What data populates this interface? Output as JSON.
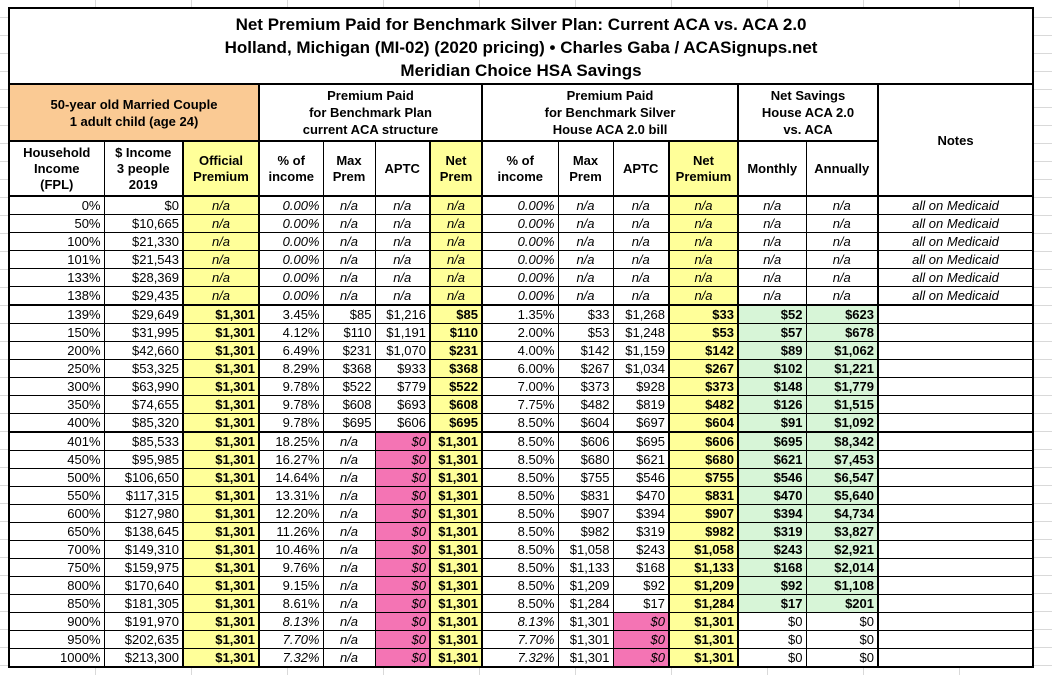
{
  "page": {
    "title_line1": "Net Premium Paid for Benchmark Silver Plan: Current ACA vs. ACA 2.0",
    "title_line2": "Holland, Michigan (MI-02) (2020 pricing) • Charles Gaba / ACASignups.net",
    "title_line3": "Meridian Choice HSA Savings"
  },
  "colors": {
    "yellow": "#FFFF99",
    "orange": "#FACA94",
    "pink": "#F474B4",
    "green": "#D7F5D7"
  },
  "chart_data": {
    "type": "table",
    "title": "Net Premium Paid for Benchmark Silver Plan: Current ACA vs. ACA 2.0",
    "subtitle": "Holland, Michigan (MI-02) (2020 pricing) • Charles Gaba / ACASignups.net",
    "subtitle2": "Meridian Choice HSA Savings",
    "column_groups": [
      {
        "label": "50-year old Married Couple\n1 adult child (age 24)",
        "span": 3
      },
      {
        "label": "Premium Paid\nfor Benchmark Plan\ncurrent ACA structure",
        "span": 4
      },
      {
        "label": "Premium Paid\nfor Benchmark Silver\nHouse ACA 2.0 bill",
        "span": 4
      },
      {
        "label": "Net Savings\nHouse ACA 2.0\nvs. ACA",
        "span": 2
      },
      {
        "label": "Notes",
        "span": 1
      }
    ],
    "columns": [
      "Household\nIncome\n(FPL)",
      "$ Income\n3 people\n2019",
      "Official\nPremium",
      "% of\nincome",
      "Max\nPrem",
      "APTC",
      "Net\nPrem",
      "% of\nincome",
      "Max\nPrem",
      "APTC",
      "Net\nPremium",
      "Monthly",
      "Annually"
    ],
    "rows": [
      {
        "type": "medicaid",
        "cells": [
          "0%",
          "$0",
          "n/a",
          "0.00%",
          "n/a",
          "n/a",
          "n/a",
          "0.00%",
          "n/a",
          "n/a",
          "n/a",
          "n/a",
          "n/a",
          "all on Medicaid"
        ]
      },
      {
        "type": "medicaid",
        "cells": [
          "50%",
          "$10,665",
          "n/a",
          "0.00%",
          "n/a",
          "n/a",
          "n/a",
          "0.00%",
          "n/a",
          "n/a",
          "n/a",
          "n/a",
          "n/a",
          "all on Medicaid"
        ]
      },
      {
        "type": "medicaid",
        "cells": [
          "100%",
          "$21,330",
          "n/a",
          "0.00%",
          "n/a",
          "n/a",
          "n/a",
          "0.00%",
          "n/a",
          "n/a",
          "n/a",
          "n/a",
          "n/a",
          "all on Medicaid"
        ]
      },
      {
        "type": "medicaid",
        "cells": [
          "101%",
          "$21,543",
          "n/a",
          "0.00%",
          "n/a",
          "n/a",
          "n/a",
          "0.00%",
          "n/a",
          "n/a",
          "n/a",
          "n/a",
          "n/a",
          "all on Medicaid"
        ]
      },
      {
        "type": "medicaid",
        "cells": [
          "133%",
          "$28,369",
          "n/a",
          "0.00%",
          "n/a",
          "n/a",
          "n/a",
          "0.00%",
          "n/a",
          "n/a",
          "n/a",
          "n/a",
          "n/a",
          "all on Medicaid"
        ]
      },
      {
        "type": "medicaid",
        "cells": [
          "138%",
          "$29,435",
          "n/a",
          "0.00%",
          "n/a",
          "n/a",
          "n/a",
          "0.00%",
          "n/a",
          "n/a",
          "n/a",
          "n/a",
          "n/a",
          "all on Medicaid"
        ]
      },
      {
        "type": "std",
        "cells": [
          "139%",
          "$29,649",
          "$1,301",
          "3.45%",
          "$85",
          "$1,216",
          "$85",
          "1.35%",
          "$33",
          "$1,268",
          "$33",
          "$52",
          "$623",
          ""
        ]
      },
      {
        "type": "std",
        "cells": [
          "150%",
          "$31,995",
          "$1,301",
          "4.12%",
          "$110",
          "$1,191",
          "$110",
          "2.00%",
          "$53",
          "$1,248",
          "$53",
          "$57",
          "$678",
          ""
        ]
      },
      {
        "type": "std",
        "cells": [
          "200%",
          "$42,660",
          "$1,301",
          "6.49%",
          "$231",
          "$1,070",
          "$231",
          "4.00%",
          "$142",
          "$1,159",
          "$142",
          "$89",
          "$1,062",
          ""
        ]
      },
      {
        "type": "std",
        "cells": [
          "250%",
          "$53,325",
          "$1,301",
          "8.29%",
          "$368",
          "$933",
          "$368",
          "6.00%",
          "$267",
          "$1,034",
          "$267",
          "$102",
          "$1,221",
          ""
        ]
      },
      {
        "type": "std",
        "cells": [
          "300%",
          "$63,990",
          "$1,301",
          "9.78%",
          "$522",
          "$779",
          "$522",
          "7.00%",
          "$373",
          "$928",
          "$373",
          "$148",
          "$1,779",
          ""
        ]
      },
      {
        "type": "std",
        "cells": [
          "350%",
          "$74,655",
          "$1,301",
          "9.78%",
          "$608",
          "$693",
          "$608",
          "7.75%",
          "$482",
          "$819",
          "$482",
          "$126",
          "$1,515",
          ""
        ]
      },
      {
        "type": "std",
        "cells": [
          "400%",
          "$85,320",
          "$1,301",
          "9.78%",
          "$695",
          "$606",
          "$695",
          "8.50%",
          "$604",
          "$697",
          "$604",
          "$91",
          "$1,092",
          ""
        ]
      },
      {
        "type": "cliff",
        "cells": [
          "401%",
          "$85,533",
          "$1,301",
          "18.25%",
          "n/a",
          "$0",
          "$1,301",
          "8.50%",
          "$606",
          "$695",
          "$606",
          "$695",
          "$8,342",
          ""
        ]
      },
      {
        "type": "cliff",
        "cells": [
          "450%",
          "$95,985",
          "$1,301",
          "16.27%",
          "n/a",
          "$0",
          "$1,301",
          "8.50%",
          "$680",
          "$621",
          "$680",
          "$621",
          "$7,453",
          ""
        ]
      },
      {
        "type": "cliff",
        "cells": [
          "500%",
          "$106,650",
          "$1,301",
          "14.64%",
          "n/a",
          "$0",
          "$1,301",
          "8.50%",
          "$755",
          "$546",
          "$755",
          "$546",
          "$6,547",
          ""
        ]
      },
      {
        "type": "cliff",
        "cells": [
          "550%",
          "$117,315",
          "$1,301",
          "13.31%",
          "n/a",
          "$0",
          "$1,301",
          "8.50%",
          "$831",
          "$470",
          "$831",
          "$470",
          "$5,640",
          ""
        ]
      },
      {
        "type": "cliff",
        "cells": [
          "600%",
          "$127,980",
          "$1,301",
          "12.20%",
          "n/a",
          "$0",
          "$1,301",
          "8.50%",
          "$907",
          "$394",
          "$907",
          "$394",
          "$4,734",
          ""
        ]
      },
      {
        "type": "cliff",
        "cells": [
          "650%",
          "$138,645",
          "$1,301",
          "11.26%",
          "n/a",
          "$0",
          "$1,301",
          "8.50%",
          "$982",
          "$319",
          "$982",
          "$319",
          "$3,827",
          ""
        ]
      },
      {
        "type": "cliff",
        "cells": [
          "700%",
          "$149,310",
          "$1,301",
          "10.46%",
          "n/a",
          "$0",
          "$1,301",
          "8.50%",
          "$1,058",
          "$243",
          "$1,058",
          "$243",
          "$2,921",
          ""
        ]
      },
      {
        "type": "cliff",
        "cells": [
          "750%",
          "$159,975",
          "$1,301",
          "9.76%",
          "n/a",
          "$0",
          "$1,301",
          "8.50%",
          "$1,133",
          "$168",
          "$1,133",
          "$168",
          "$2,014",
          ""
        ]
      },
      {
        "type": "cliff",
        "cells": [
          "800%",
          "$170,640",
          "$1,301",
          "9.15%",
          "n/a",
          "$0",
          "$1,301",
          "8.50%",
          "$1,209",
          "$92",
          "$1,209",
          "$92",
          "$1,108",
          ""
        ]
      },
      {
        "type": "cliff",
        "cells": [
          "850%",
          "$181,305",
          "$1,301",
          "8.61%",
          "n/a",
          "$0",
          "$1,301",
          "8.50%",
          "$1,284",
          "$17",
          "$1,284",
          "$17",
          "$201",
          ""
        ]
      },
      {
        "type": "top",
        "cells": [
          "900%",
          "$191,970",
          "$1,301",
          "8.13%",
          "n/a",
          "$0",
          "$1,301",
          "8.13%",
          "$1,301",
          "$0",
          "$1,301",
          "$0",
          "$0",
          ""
        ]
      },
      {
        "type": "top",
        "cells": [
          "950%",
          "$202,635",
          "$1,301",
          "7.70%",
          "n/a",
          "$0",
          "$1,301",
          "7.70%",
          "$1,301",
          "$0",
          "$1,301",
          "$0",
          "$0",
          ""
        ]
      },
      {
        "type": "top",
        "cells": [
          "1000%",
          "$213,300",
          "$1,301",
          "7.32%",
          "n/a",
          "$0",
          "$1,301",
          "7.32%",
          "$1,301",
          "$0",
          "$1,301",
          "$0",
          "$0",
          ""
        ]
      }
    ]
  }
}
